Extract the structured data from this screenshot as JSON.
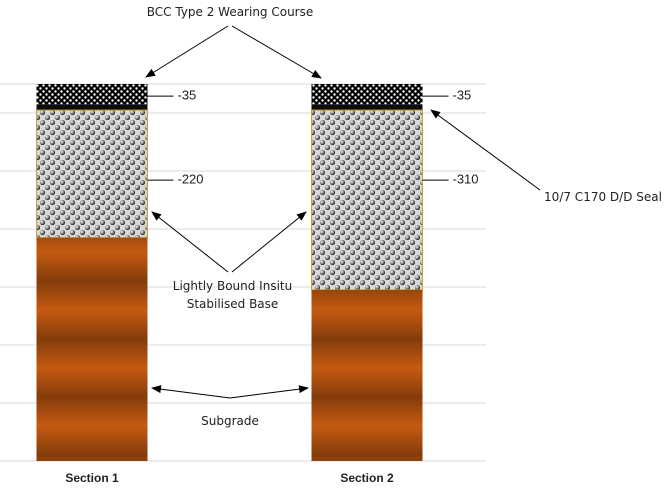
{
  "chart_data": {
    "type": "bar",
    "stacked": true,
    "categories": [
      "Section 1",
      "Section 2"
    ],
    "series": [
      {
        "name": "BCC Type 2 Wearing Course",
        "color": "#000000",
        "values": [
          -35,
          -35
        ]
      },
      {
        "name": "10/7 C170 D/D Seal",
        "color": "#0d0d0d",
        "values": [
          -10,
          -10
        ]
      },
      {
        "name": "Lightly Bound Insitu Stabilised Base",
        "color": "#8c8c8c",
        "values": [
          -220,
          -310
        ]
      },
      {
        "name": "Subgrade",
        "color": "#c55a11",
        "values": [
          -385,
          -295
        ]
      }
    ],
    "ylim": [
      -650,
      0
    ],
    "yticks": [
      0,
      -50,
      -150,
      -250,
      -350,
      -450,
      -550,
      -650
    ],
    "grid": true
  }
}
